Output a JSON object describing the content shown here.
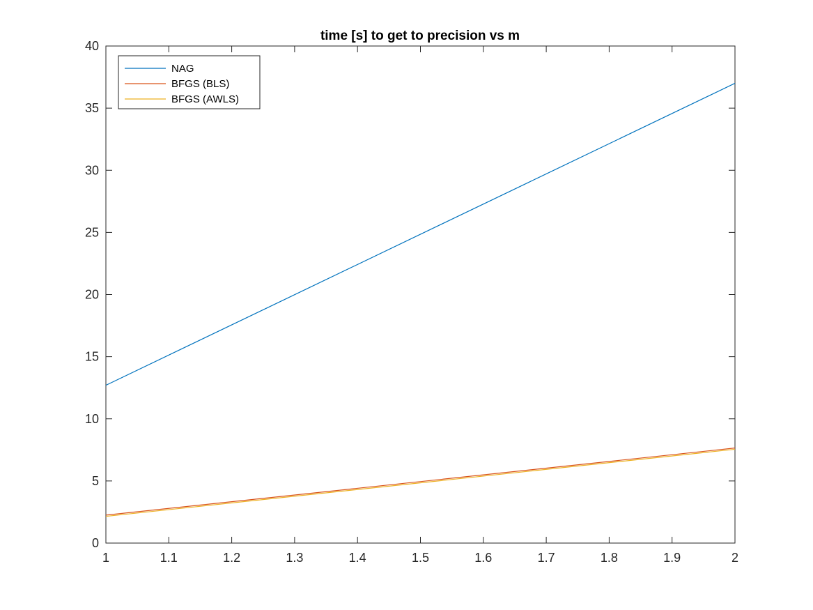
{
  "chart_data": {
    "type": "line",
    "title": "time [s] to get to precision vs m",
    "xlabel": "",
    "ylabel": "",
    "xlim": [
      1,
      2
    ],
    "ylim": [
      0,
      40
    ],
    "xticks": [
      1,
      1.1,
      1.2,
      1.3,
      1.4,
      1.5,
      1.6,
      1.7,
      1.8,
      1.9,
      2
    ],
    "xtick_labels": [
      "1",
      "1.1",
      "1.2",
      "1.3",
      "1.4",
      "1.5",
      "1.6",
      "1.7",
      "1.8",
      "1.9",
      "2"
    ],
    "yticks": [
      0,
      5,
      10,
      15,
      20,
      25,
      30,
      35,
      40
    ],
    "ytick_labels": [
      "0",
      "5",
      "10",
      "15",
      "20",
      "25",
      "30",
      "35",
      "40"
    ],
    "grid": false,
    "legend_position": "top-left",
    "series": [
      {
        "name": "NAG",
        "color": "#0072BD",
        "x": [
          1,
          2
        ],
        "y": [
          12.7,
          37.0
        ]
      },
      {
        "name": "BFGS (BLS)",
        "color": "#D95319",
        "x": [
          1,
          2
        ],
        "y": [
          2.25,
          7.65
        ]
      },
      {
        "name": "BFGS (AWLS)",
        "color": "#EDB120",
        "x": [
          1,
          2
        ],
        "y": [
          2.15,
          7.55
        ]
      }
    ]
  }
}
